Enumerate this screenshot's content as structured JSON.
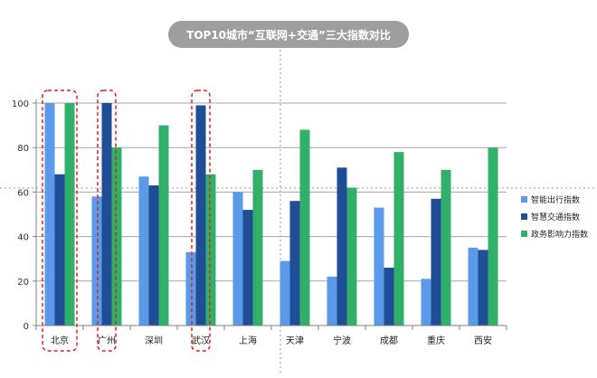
{
  "page": {
    "title": "TOP10城市“互联网+交通”三大指数对比",
    "title_bg": "#9e9e9e"
  },
  "chart_data": {
    "type": "bar",
    "title": "TOP10城市“互联网+交通”三大指数对比",
    "categories": [
      "北京",
      "广州",
      "深圳",
      "武汉",
      "上海",
      "天津",
      "宁波",
      "成都",
      "重庆",
      "西安"
    ],
    "series": [
      {
        "name": "智能出行指数",
        "color": "#5b9ae8",
        "values": [
          100,
          58,
          67,
          33,
          60,
          29,
          22,
          53,
          21,
          35
        ]
      },
      {
        "name": "智慧交通指数",
        "color": "#1f4e96",
        "values": [
          68,
          100,
          63,
          99,
          52,
          56,
          71,
          26,
          57,
          34
        ]
      },
      {
        "name": "政务影响力指数",
        "color": "#30b068",
        "values": [
          100,
          80,
          90,
          68,
          70,
          88,
          62,
          78,
          70,
          80
        ]
      }
    ],
    "ylim": [
      0,
      100
    ],
    "yticks": [
      0,
      20,
      40,
      60,
      80,
      100
    ],
    "grid": true,
    "legend_position": "right",
    "highlighted_categories": [
      "北京",
      "广州",
      "武汉"
    ],
    "highlight_color": "#e02020"
  }
}
